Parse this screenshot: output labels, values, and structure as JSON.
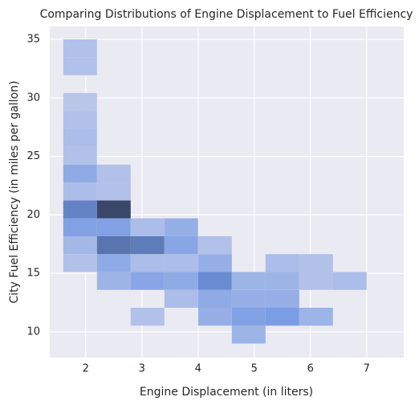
{
  "chart_data": {
    "type": "hist2d",
    "title": "Comparing Distributions of Engine Displacement to Fuel Efficiency",
    "xlabel": "Engine Displacement (in liters)",
    "ylabel": "City Fuel Efficiency (in miles per gallon)",
    "xbins": [
      1.6,
      2.2,
      2.8,
      3.4,
      4.0,
      4.6,
      5.2,
      5.8,
      6.4,
      7.0
    ],
    "ybins": [
      9,
      10.529,
      12.059,
      13.588,
      15.118,
      16.647,
      18.176,
      19.706,
      21.235,
      22.765,
      24.294,
      25.824,
      27.353,
      28.882,
      30.412,
      31.941,
      33.471,
      35
    ],
    "counts": [
      [
        0,
        0,
        0,
        0,
        0,
        5,
        0,
        0,
        0
      ],
      [
        0,
        0,
        2,
        0,
        6,
        9,
        10,
        5,
        0
      ],
      [
        0,
        0,
        0,
        3,
        7,
        6,
        6,
        0,
        0
      ],
      [
        0,
        5,
        8,
        7,
        13,
        5,
        5,
        2,
        3
      ],
      [
        2,
        7,
        3,
        3,
        6,
        0,
        3,
        2,
        0
      ],
      [
        4,
        16,
        15,
        8,
        2,
        0,
        0,
        0,
        0
      ],
      [
        9,
        9,
        3,
        6,
        0,
        0,
        0,
        0,
        0
      ],
      [
        14,
        22,
        0,
        0,
        0,
        0,
        0,
        0,
        0
      ],
      [
        3,
        2,
        0,
        0,
        0,
        0,
        0,
        0,
        0
      ],
      [
        7,
        2,
        0,
        0,
        0,
        0,
        0,
        0,
        0
      ],
      [
        2,
        0,
        0,
        0,
        0,
        0,
        0,
        0,
        0
      ],
      [
        3,
        0,
        0,
        0,
        0,
        0,
        0,
        0,
        0
      ],
      [
        2,
        0,
        0,
        0,
        0,
        0,
        0,
        0,
        0
      ],
      [
        1,
        0,
        0,
        0,
        0,
        0,
        0,
        0,
        0
      ],
      [
        0,
        0,
        0,
        0,
        0,
        0,
        0,
        0,
        0
      ],
      [
        2,
        0,
        0,
        0,
        0,
        0,
        0,
        0,
        0
      ],
      [
        2,
        0,
        0,
        0,
        0,
        0,
        0,
        0,
        0
      ]
    ],
    "cmap": [
      "#b9c6ea",
      "#6f96e2",
      "#3b4768"
    ],
    "xlim": [
      1.36,
      7.66
    ],
    "ylim": [
      7.8,
      36.1
    ],
    "xticks": [
      2,
      3,
      4,
      5,
      6,
      7
    ],
    "yticks": [
      10,
      15,
      20,
      25,
      30,
      35
    ],
    "grid": true
  }
}
